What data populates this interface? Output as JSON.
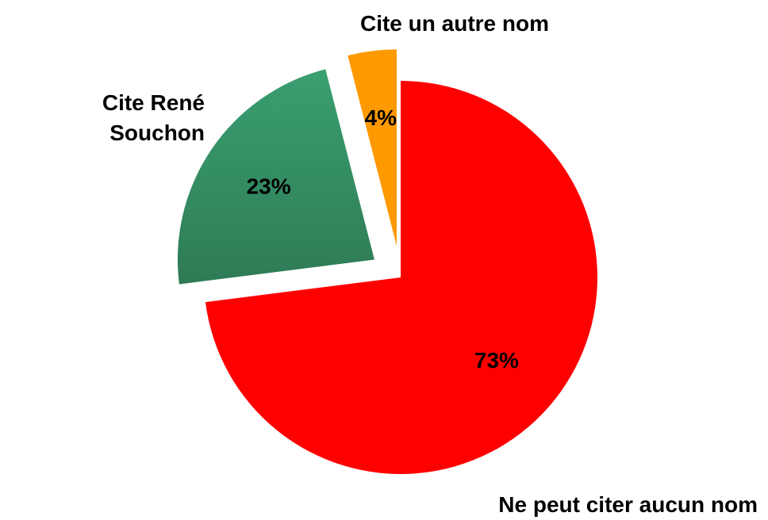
{
  "chart_data": {
    "type": "pie",
    "categories": [
      "Ne peut citer aucun nom",
      "Cite René Souchon",
      "Cite un autre nom"
    ],
    "values": [
      73,
      23,
      4
    ],
    "value_labels": [
      "73%",
      "23%",
      "4%"
    ],
    "colors": [
      "#ff0000",
      "#339966",
      "#ff9900"
    ]
  }
}
